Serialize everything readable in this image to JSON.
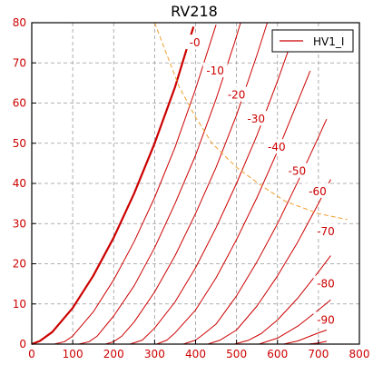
{
  "chart_data": {
    "type": "line",
    "title": "RV218",
    "xlabel": "",
    "ylabel": "",
    "xlim": [
      0,
      800
    ],
    "ylim": [
      0,
      80
    ],
    "xticks": [
      "0",
      "100",
      "200",
      "300",
      "400",
      "500",
      "600",
      "700",
      "800"
    ],
    "yticks": [
      "0",
      "10",
      "20",
      "30",
      "40",
      "50",
      "60",
      "70",
      "80"
    ],
    "grid": true,
    "legend": {
      "position": "top-right",
      "entries": [
        "HV1_I"
      ]
    },
    "colors": {
      "curves": "#cc0000",
      "load_line": "#f0a030",
      "axes": "#000000",
      "grid": "#999999",
      "ticks": "#cc0000"
    },
    "series": [
      {
        "name": "HV1_I",
        "label": "-0",
        "points": [
          [
            0,
            0
          ],
          [
            20,
            0.8
          ],
          [
            50,
            3
          ],
          [
            100,
            9
          ],
          [
            150,
            17
          ],
          [
            200,
            26.5
          ],
          [
            250,
            37.5
          ],
          [
            300,
            50
          ],
          [
            350,
            64
          ],
          [
            395,
            79
          ]
        ]
      },
      {
        "label": "-10",
        "points": [
          [
            55,
            0
          ],
          [
            80,
            0.6
          ],
          [
            100,
            2
          ],
          [
            150,
            8
          ],
          [
            200,
            16
          ],
          [
            250,
            25.5
          ],
          [
            300,
            36.5
          ],
          [
            350,
            49
          ],
          [
            400,
            63.5
          ],
          [
            450,
            79.5
          ]
        ]
      },
      {
        "label": "-20",
        "points": [
          [
            115,
            0
          ],
          [
            140,
            0.6
          ],
          [
            160,
            2
          ],
          [
            200,
            7
          ],
          [
            250,
            14.5
          ],
          [
            300,
            24
          ],
          [
            350,
            35
          ],
          [
            400,
            47
          ],
          [
            450,
            61
          ],
          [
            495,
            75
          ],
          [
            510,
            80
          ]
        ]
      },
      {
        "label": "-30",
        "points": [
          [
            180,
            0
          ],
          [
            200,
            0.6
          ],
          [
            220,
            2
          ],
          [
            250,
            5.5
          ],
          [
            300,
            13
          ],
          [
            350,
            22
          ],
          [
            400,
            32.5
          ],
          [
            450,
            44
          ],
          [
            500,
            57
          ],
          [
            550,
            72
          ],
          [
            575,
            80
          ]
        ]
      },
      {
        "label": "-40",
        "points": [
          [
            240,
            0
          ],
          [
            270,
            1
          ],
          [
            300,
            4
          ],
          [
            350,
            10.5
          ],
          [
            400,
            19
          ],
          [
            450,
            29
          ],
          [
            500,
            40
          ],
          [
            550,
            52
          ],
          [
            600,
            65.5
          ],
          [
            640,
            77
          ]
        ]
      },
      {
        "label": "-50",
        "points": [
          [
            305,
            0
          ],
          [
            330,
            1
          ],
          [
            350,
            2.8
          ],
          [
            400,
            8.5
          ],
          [
            450,
            16.5
          ],
          [
            500,
            26
          ],
          [
            550,
            36.5
          ],
          [
            600,
            48
          ],
          [
            650,
            60.5
          ],
          [
            680,
            68
          ]
        ]
      },
      {
        "label": "-60",
        "points": [
          [
            370,
            0
          ],
          [
            400,
            1
          ],
          [
            420,
            2.5
          ],
          [
            450,
            5
          ],
          [
            500,
            12
          ],
          [
            550,
            20.5
          ],
          [
            600,
            30
          ],
          [
            650,
            40.5
          ],
          [
            700,
            51.5
          ],
          [
            720,
            56
          ]
        ]
      },
      {
        "label": "-70",
        "points": [
          [
            430,
            0
          ],
          [
            460,
            1
          ],
          [
            500,
            3.5
          ],
          [
            550,
            9.5
          ],
          [
            600,
            17
          ],
          [
            650,
            25.5
          ],
          [
            700,
            35
          ],
          [
            730,
            41
          ]
        ]
      },
      {
        "label": "-80",
        "points": [
          [
            495,
            0
          ],
          [
            530,
            1
          ],
          [
            560,
            2.6
          ],
          [
            600,
            6
          ],
          [
            650,
            11.5
          ],
          [
            700,
            18
          ],
          [
            730,
            22
          ]
        ]
      },
      {
        "label": "-90",
        "points": [
          [
            555,
            0
          ],
          [
            600,
            1.5
          ],
          [
            650,
            4.5
          ],
          [
            700,
            8.5
          ],
          [
            730,
            11
          ]
        ]
      },
      {
        "label": "",
        "points": [
          [
            615,
            0
          ],
          [
            650,
            0.8
          ],
          [
            700,
            2.8
          ],
          [
            720,
            3.5
          ]
        ]
      },
      {
        "label": "",
        "points": [
          [
            675,
            0
          ],
          [
            700,
            0.3
          ],
          [
            720,
            0.7
          ]
        ]
      }
    ],
    "emphasized_series_index": 0,
    "load_line": [
      [
        300,
        80
      ],
      [
        330,
        72
      ],
      [
        360,
        64
      ],
      [
        400,
        56.5
      ],
      [
        440,
        50
      ],
      [
        500,
        44
      ],
      [
        560,
        39.5
      ],
      [
        620,
        35.5
      ],
      [
        700,
        32.5
      ],
      [
        770,
        31
      ]
    ],
    "curve_label_positions": [
      {
        "label": "-0",
        "x": 398,
        "y": 75
      },
      {
        "label": "-10",
        "x": 448,
        "y": 68
      },
      {
        "label": "-20",
        "x": 500,
        "y": 62
      },
      {
        "label": "-30",
        "x": 548,
        "y": 56
      },
      {
        "label": "-40",
        "x": 598,
        "y": 49
      },
      {
        "label": "-50",
        "x": 648,
        "y": 43
      },
      {
        "label": "-60",
        "x": 698,
        "y": 38
      },
      {
        "label": "-70",
        "x": 718,
        "y": 28
      },
      {
        "label": "-80",
        "x": 718,
        "y": 15
      },
      {
        "label": "-90",
        "x": 718,
        "y": 6
      }
    ]
  }
}
